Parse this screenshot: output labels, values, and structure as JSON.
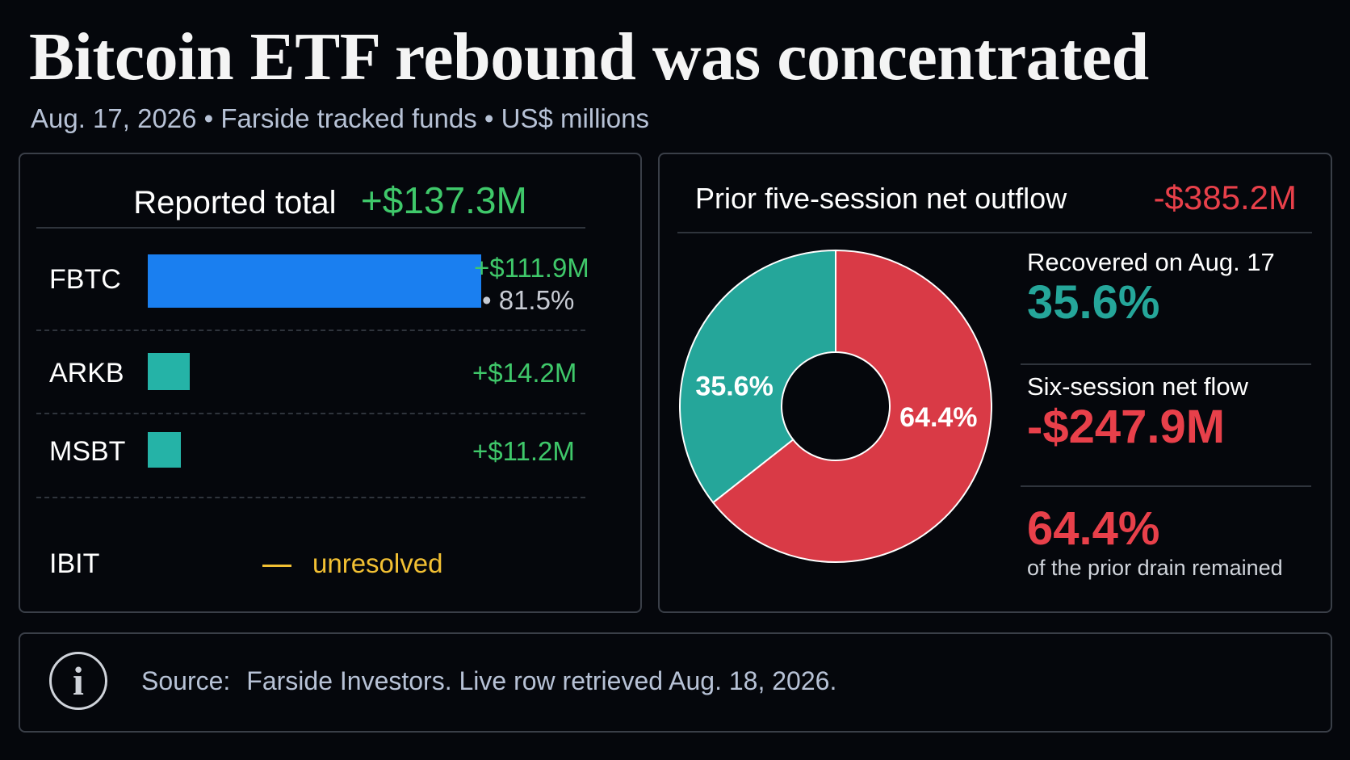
{
  "title": "Bitcoin ETF rebound was concentrated",
  "subtitle": "Aug. 17, 2026 • Farside tracked funds • US$ millions",
  "left_panel": {
    "total_label": "Reported total",
    "total_value": "+$137.3M",
    "funds": [
      {
        "name": "FBTC",
        "value_label": "+$111.9M",
        "share_label": "• 81.5%"
      },
      {
        "name": "ARKB",
        "value_label": "+$14.2M"
      },
      {
        "name": "MSBT",
        "value_label": "+$11.2M"
      },
      {
        "name": "IBIT",
        "status": "unresolved"
      }
    ]
  },
  "right_panel": {
    "header_label": "Prior five-session net outflow",
    "header_value": "-$385.2M",
    "slices": [
      {
        "label": "35.6%"
      },
      {
        "label": "64.4%"
      }
    ],
    "recovered_label": "Recovered on Aug. 17",
    "recovered_value": "35.6%",
    "six_session_label": "Six-session net flow",
    "six_session_value": "-$247.9M",
    "remaining_value": "64.4%",
    "remaining_note": "of the prior drain remained"
  },
  "source": {
    "label": "Source:",
    "text": "Farside Investors. Live row retrieved Aug. 18, 2026."
  },
  "colors": {
    "fbtc_bar": "#1a7ff0",
    "other_bars": "#25b3a7",
    "positive": "#3fc86a",
    "negative": "#e8404a",
    "recovered": "#25a69a",
    "remaining": "#d93a46",
    "unresolved": "#f2c033"
  },
  "chart_data": [
    {
      "type": "bar",
      "orientation": "horizontal",
      "categories": [
        "FBTC",
        "ARKB",
        "MSBT",
        "IBIT"
      ],
      "values": [
        111.9,
        14.2,
        11.2,
        null
      ],
      "unit": "US$ millions"
    },
    {
      "type": "pie",
      "style": "donut",
      "values": [
        35.6,
        64.4
      ],
      "unit": "%"
    }
  ]
}
